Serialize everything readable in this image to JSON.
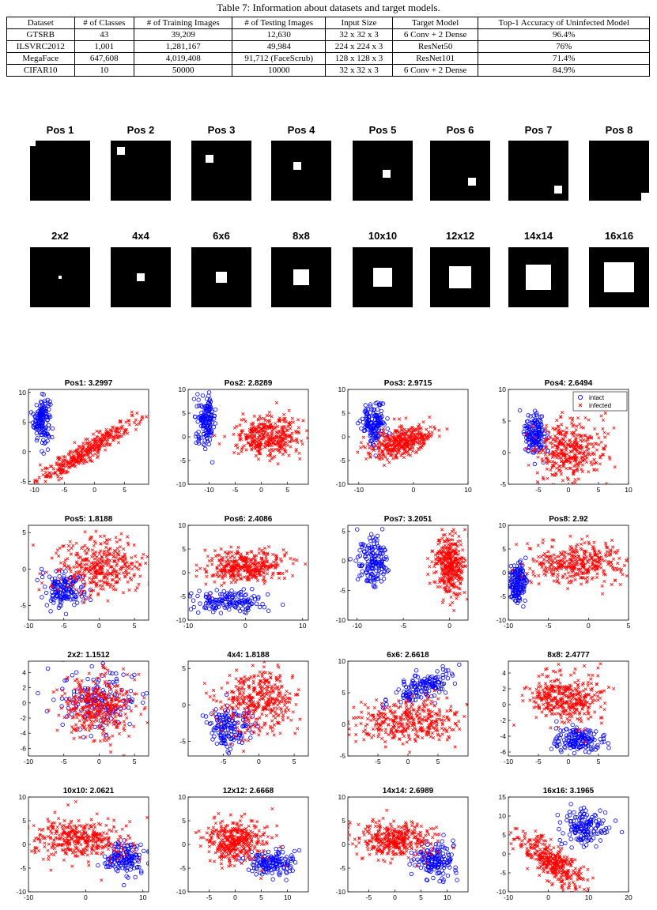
{
  "table": {
    "caption": "Table 7: Information about datasets and target models.",
    "headers": [
      "Dataset",
      "# of Classes",
      "# of Training Images",
      "# of Testing Images",
      "Input Size",
      "Target Model",
      "Top-1 Accuracy of Uninfected Model"
    ],
    "rows": [
      [
        "GTSRB",
        "43",
        "39,209",
        "12,630",
        "32 x 32 x 3",
        "6 Conv + 2 Dense",
        "96.4%"
      ],
      [
        "ILSVRC2012",
        "1,001",
        "1,281,167",
        "49,984",
        "224 x 224 x 3",
        "ResNet50",
        "76%"
      ],
      [
        "MegaFace",
        "647,608",
        "4,019,408",
        "91,712 (FaceScrub)",
        "128 x 128 x 3",
        "ResNet101",
        "71.4%"
      ],
      [
        "CIFAR10",
        "10",
        "50000",
        "10000",
        "32 x 32 x 3",
        "6 Conv + 2 Dense",
        "84.9%"
      ]
    ]
  },
  "positions": [
    "Pos 1",
    "Pos 2",
    "Pos 3",
    "Pos 4",
    "Pos 5",
    "Pos 6",
    "Pos 7",
    "Pos 8"
  ],
  "sizes": [
    "2x2",
    "4x4",
    "6x6",
    "8x8",
    "10x10",
    "12x12",
    "14x14",
    "16x16"
  ],
  "legend": {
    "intact": "intact",
    "infected": "infected"
  },
  "colors": {
    "intact": "#0000ff",
    "infected": "#ff0000"
  },
  "chart_data": [
    {
      "type": "scatter",
      "title": "Pos1: 3.2997",
      "xlim": [
        -11,
        9
      ],
      "ylim": [
        -5.5,
        10.5
      ],
      "xticks": [
        -10,
        -5,
        0,
        5
      ],
      "yticks": [
        -5,
        0,
        5,
        10
      ],
      "series": [
        {
          "name": "intact",
          "center": [
            -8.8,
            5.5
          ],
          "spread": [
            0.7,
            1.9
          ]
        },
        {
          "name": "infected",
          "center": [
            -1,
            0.3
          ],
          "spread": [
            4.2,
            0.9
          ],
          "slope": 0.62
        }
      ]
    },
    {
      "type": "scatter",
      "title": "Pos2: 2.8289",
      "xlim": [
        -14,
        9
      ],
      "ylim": [
        -10,
        10
      ],
      "xticks": [
        -10,
        -5,
        0,
        5
      ],
      "yticks": [
        -10,
        -5,
        0,
        5,
        10
      ],
      "series": [
        {
          "name": "intact",
          "center": [
            -10.5,
            3.5
          ],
          "spread": [
            0.9,
            2.5
          ]
        },
        {
          "name": "infected",
          "center": [
            1,
            0
          ],
          "spread": [
            3.2,
            2.2
          ]
        }
      ]
    },
    {
      "type": "scatter",
      "title": "Pos3: 2.9715",
      "xlim": [
        -12,
        10
      ],
      "ylim": [
        -10,
        10
      ],
      "xticks": [
        -10,
        0,
        10
      ],
      "yticks": [
        -10,
        -5,
        0,
        5,
        10
      ],
      "series": [
        {
          "name": "intact",
          "center": [
            -7.2,
            2.8
          ],
          "spread": [
            1.1,
            2.1
          ]
        },
        {
          "name": "infected",
          "center": [
            -2,
            -1
          ],
          "spread": [
            2.8,
            1.5
          ],
          "slope": 0.3
        }
      ]
    },
    {
      "type": "scatter",
      "title": "Pos4: 2.6494",
      "xlim": [
        -10,
        10
      ],
      "ylim": [
        -5,
        10
      ],
      "xticks": [
        -5,
        0,
        5,
        10
      ],
      "yticks": [
        -5,
        0,
        5,
        10
      ],
      "series": [
        {
          "name": "intact",
          "center": [
            -5.5,
            2.8
          ],
          "spread": [
            0.9,
            1.8
          ]
        },
        {
          "name": "infected",
          "center": [
            0,
            0.5
          ],
          "spread": [
            3,
            2.5
          ]
        }
      ]
    },
    {
      "type": "scatter",
      "title": "Pos5: 1.8188",
      "xlim": [
        -10,
        7
      ],
      "ylim": [
        -7,
        6
      ],
      "xticks": [
        -10,
        -5,
        0,
        5
      ],
      "yticks": [
        -5,
        0,
        5
      ],
      "series": [
        {
          "name": "intact",
          "center": [
            -5,
            -2.8
          ],
          "spread": [
            1.4,
            1.2
          ]
        },
        {
          "name": "infected",
          "center": [
            0,
            0.5
          ],
          "spread": [
            3,
            1.9
          ]
        }
      ]
    },
    {
      "type": "scatter",
      "title": "Pos6: 2.4086",
      "xlim": [
        -10,
        11
      ],
      "ylim": [
        -10,
        10
      ],
      "xticks": [
        -10,
        0,
        10
      ],
      "yticks": [
        -10,
        -5,
        0,
        5,
        10
      ],
      "series": [
        {
          "name": "intact",
          "center": [
            -3,
            -6
          ],
          "spread": [
            3,
            1.3
          ]
        },
        {
          "name": "infected",
          "center": [
            0,
            1.2
          ],
          "spread": [
            3.5,
            1.7
          ]
        }
      ]
    },
    {
      "type": "scatter",
      "title": "Pos7: 3.2051",
      "xlim": [
        -11,
        2
      ],
      "ylim": [
        -10,
        6
      ],
      "xticks": [
        -10,
        -5,
        0
      ],
      "yticks": [
        -10,
        -5,
        0,
        5
      ],
      "series": [
        {
          "name": "intact",
          "center": [
            -8.2,
            0
          ],
          "spread": [
            0.9,
            2.3
          ]
        },
        {
          "name": "infected",
          "center": [
            0,
            -0.5
          ],
          "spread": [
            0.8,
            2.6
          ]
        }
      ]
    },
    {
      "type": "scatter",
      "title": "Pos8: 2.92",
      "xlim": [
        -10,
        5
      ],
      "ylim": [
        -10,
        10
      ],
      "xticks": [
        -10,
        -5,
        0,
        5
      ],
      "yticks": [
        -10,
        -5,
        0,
        5,
        10
      ],
      "series": [
        {
          "name": "intact",
          "center": [
            -8.8,
            -2.3
          ],
          "spread": [
            0.6,
            2.2
          ]
        },
        {
          "name": "infected",
          "center": [
            -1.5,
            2
          ],
          "spread": [
            3,
            2.2
          ]
        }
      ]
    },
    {
      "type": "scatter",
      "title": "2x2: 1.1512",
      "xlim": [
        -10,
        7
      ],
      "ylim": [
        -7,
        5.5
      ],
      "xticks": [
        -10,
        -5,
        0,
        5
      ],
      "yticks": [
        -6,
        -4,
        -2,
        0,
        2,
        4
      ],
      "series": [
        {
          "name": "intact",
          "center": [
            0,
            0.5
          ],
          "spread": [
            3,
            2
          ]
        },
        {
          "name": "infected",
          "center": [
            0,
            -0.5
          ],
          "spread": [
            2.6,
            2
          ]
        }
      ]
    },
    {
      "type": "scatter",
      "title": "4x4: 1.8188",
      "xlim": [
        -10,
        7
      ],
      "ylim": [
        -7,
        6
      ],
      "xticks": [
        -5,
        0,
        5
      ],
      "yticks": [
        -5,
        0,
        5
      ],
      "series": [
        {
          "name": "intact",
          "center": [
            -4,
            -3
          ],
          "spread": [
            1.4,
            1.4
          ]
        },
        {
          "name": "infected",
          "center": [
            0,
            0.5
          ],
          "spread": [
            2.8,
            2.2
          ]
        }
      ]
    },
    {
      "type": "scatter",
      "title": "6x6: 2.6618",
      "xlim": [
        -10,
        10
      ],
      "ylim": [
        -5,
        10
      ],
      "xticks": [
        -5,
        0,
        5
      ],
      "yticks": [
        -5,
        0,
        5,
        10
      ],
      "series": [
        {
          "name": "intact",
          "center": [
            2,
            5.8
          ],
          "spread": [
            2.5,
            1
          ],
          "slope": 0.3
        },
        {
          "name": "infected",
          "center": [
            0,
            0.5
          ],
          "spread": [
            4.5,
            1.8
          ]
        }
      ]
    },
    {
      "type": "scatter",
      "title": "8x8: 2.4777",
      "xlim": [
        -10,
        10
      ],
      "ylim": [
        -6.5,
        5.5
      ],
      "xticks": [
        -10,
        -5,
        0,
        5
      ],
      "yticks": [
        -6,
        -4,
        -2,
        0,
        2,
        4
      ],
      "series": [
        {
          "name": "intact",
          "center": [
            1.5,
            -4.5
          ],
          "spread": [
            2.2,
            0.8
          ]
        },
        {
          "name": "infected",
          "center": [
            -0.5,
            0.8
          ],
          "spread": [
            3,
            1.7
          ]
        }
      ]
    },
    {
      "type": "scatter",
      "title": "10x10: 2.0621",
      "xlim": [
        -10,
        11
      ],
      "ylim": [
        -10,
        10
      ],
      "xticks": [
        -10,
        0,
        10
      ],
      "yticks": [
        -10,
        -5,
        0,
        5,
        10
      ],
      "series": [
        {
          "name": "intact",
          "center": [
            7,
            -3
          ],
          "spread": [
            1.8,
            1.6
          ]
        },
        {
          "name": "infected",
          "center": [
            -1,
            1
          ],
          "spread": [
            4,
            2
          ]
        }
      ]
    },
    {
      "type": "scatter",
      "title": "12x12: 2.6668",
      "xlim": [
        -9,
        14
      ],
      "ylim": [
        -10,
        10
      ],
      "xticks": [
        -5,
        0,
        5,
        10
      ],
      "yticks": [
        -10,
        -5,
        0,
        5,
        10
      ],
      "series": [
        {
          "name": "intact",
          "center": [
            7,
            -4
          ],
          "spread": [
            2.5,
            1.3
          ]
        },
        {
          "name": "infected",
          "center": [
            0,
            0.5
          ],
          "spread": [
            2.8,
            2.3
          ]
        }
      ]
    },
    {
      "type": "scatter",
      "title": "14x14: 2.6989",
      "xlim": [
        -9,
        14
      ],
      "ylim": [
        -10,
        10
      ],
      "xticks": [
        -5,
        0,
        5,
        10
      ],
      "yticks": [
        -10,
        -5,
        0,
        5,
        10
      ],
      "series": [
        {
          "name": "intact",
          "center": [
            7.5,
            -3.5
          ],
          "spread": [
            2,
            1.8
          ]
        },
        {
          "name": "infected",
          "center": [
            0,
            1
          ],
          "spread": [
            3.5,
            2
          ]
        }
      ]
    },
    {
      "type": "scatter",
      "title": "16x16: 3.1965",
      "xlim": [
        -10,
        20
      ],
      "ylim": [
        -10,
        15
      ],
      "xticks": [
        -10,
        0,
        10,
        20
      ],
      "yticks": [
        -10,
        -5,
        0,
        5,
        10,
        15
      ],
      "series": [
        {
          "name": "intact",
          "center": [
            9,
            7
          ],
          "spread": [
            2.8,
            2.2
          ]
        },
        {
          "name": "infected",
          "center": [
            1,
            -2
          ],
          "spread": [
            4,
            2.2
          ],
          "slope": -0.7
        }
      ]
    }
  ]
}
